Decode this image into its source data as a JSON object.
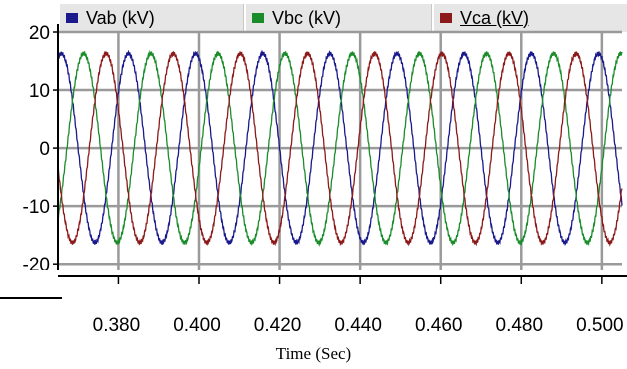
{
  "chart_data": {
    "type": "line",
    "title": "",
    "xlabel": "Time (Sec)",
    "ylabel": "",
    "x_ticks": [
      "0.380",
      "0.400",
      "0.420",
      "0.440",
      "0.460",
      "0.480",
      "0.500"
    ],
    "y_ticks": [
      "20",
      "10",
      "0",
      "-10",
      "-20"
    ],
    "xlim": [
      0.365,
      0.505
    ],
    "ylim": [
      -21,
      20
    ],
    "grid": true,
    "legend_position": "top",
    "waveform": {
      "amplitude_kV": 16.3,
      "frequency_Hz": 60
    },
    "series": [
      {
        "name": "Vab (kV)",
        "color": "#1a1a8c",
        "phase_deg": 108
      },
      {
        "name": "Vbc (kV)",
        "color": "#1a8c2a",
        "phase_deg": -12
      },
      {
        "name": "Vca (kV)",
        "color": "#8c1a1a",
        "phase_deg": -132
      }
    ]
  }
}
